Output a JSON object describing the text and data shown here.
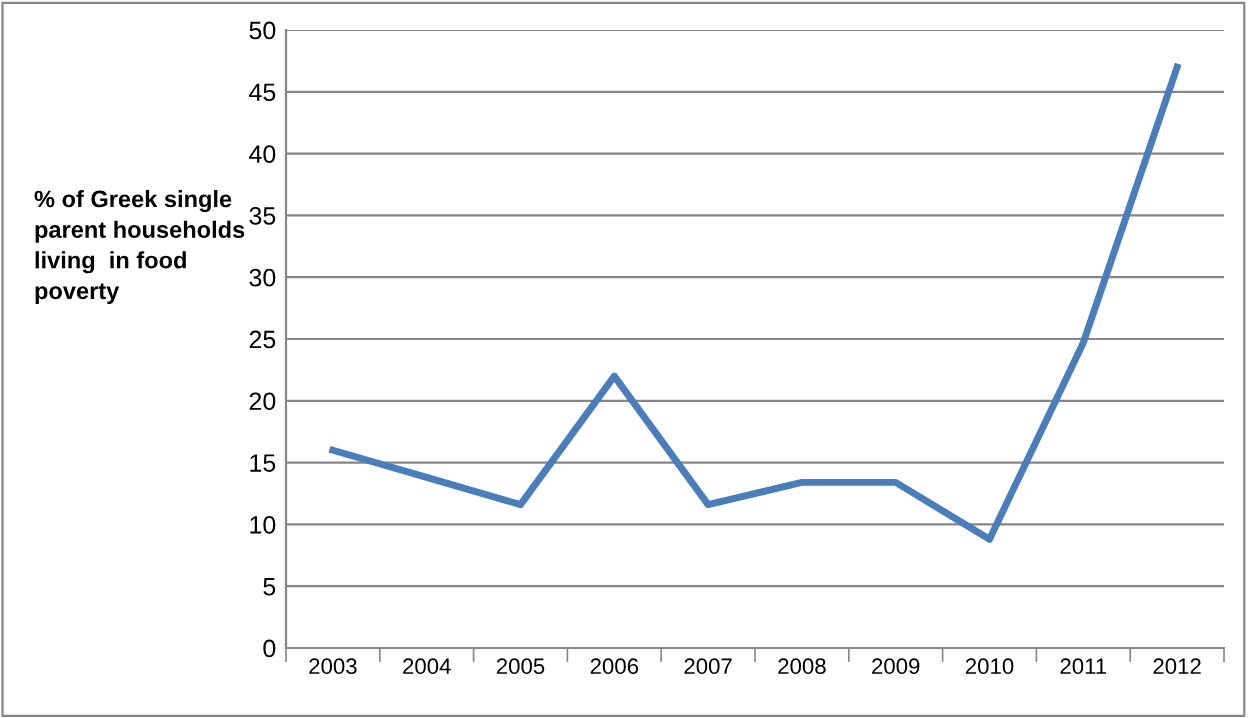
{
  "chart_data": {
    "type": "line",
    "ylabel": "% of Greek single\nparent households\nliving  in food\npoverty",
    "categories": [
      "2003",
      "2004",
      "2005",
      "2006",
      "2007",
      "2008",
      "2009",
      "2010",
      "2011",
      "2012"
    ],
    "series": [
      {
        "color": "#4a7ebb",
        "values": [
          16,
          13.8,
          11.6,
          22,
          11.6,
          13.4,
          13.4,
          8.8,
          24.7,
          47
        ]
      }
    ],
    "ylim": [
      0,
      50
    ],
    "yticks": [
      0,
      5,
      10,
      15,
      20,
      25,
      30,
      35,
      40,
      45,
      50
    ],
    "grid": "y",
    "legend": false,
    "marker": "none",
    "line_style": "solid"
  }
}
